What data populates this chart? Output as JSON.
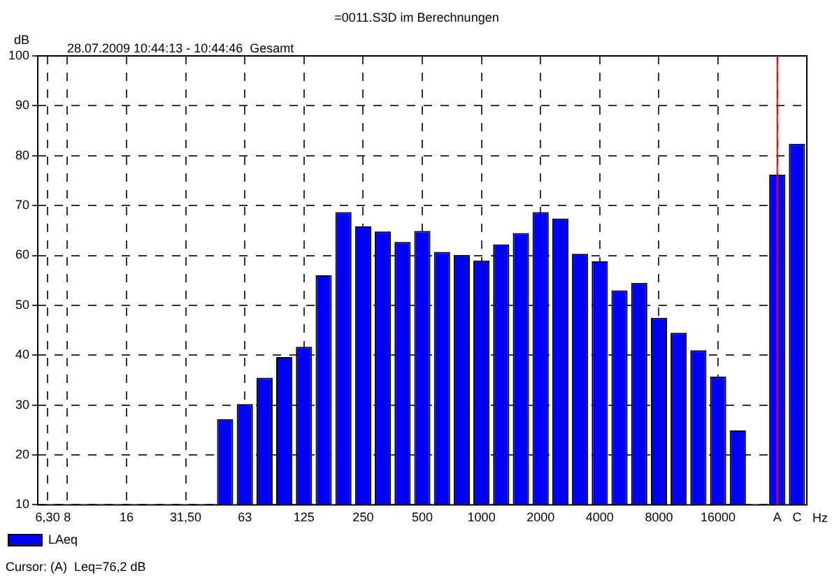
{
  "chart_data": {
    "type": "bar",
    "title": "=0011.S3D im Berechnungen",
    "subtitle": "28.07.2009 10:44:13 - 10:44:46  Gesamt",
    "ylabel": "dB",
    "xlabel": "Hz",
    "categories": [
      "6,30",
      "8",
      null,
      null,
      "16",
      null,
      null,
      "31,50",
      null,
      null,
      "63",
      null,
      null,
      "125",
      null,
      null,
      "250",
      null,
      null,
      "500",
      null,
      null,
      "1000",
      null,
      null,
      "2000",
      null,
      null,
      "4000",
      null,
      null,
      "8000",
      null,
      null,
      "16000",
      null,
      null,
      "A",
      "C"
    ],
    "series": [
      {
        "name": "LAeq",
        "color": "#0000ff",
        "values": [
          null,
          null,
          null,
          null,
          null,
          null,
          null,
          null,
          null,
          27.2,
          30.2,
          35.5,
          39.6,
          41.7,
          56.0,
          68.7,
          65.8,
          64.8,
          62.7,
          64.9,
          60.7,
          60.1,
          59.0,
          62.2,
          64.5,
          68.7,
          67.4,
          60.3,
          58.8,
          53.0,
          54.5,
          47.5,
          44.5,
          41.0,
          35.7,
          24.9,
          null,
          76.2,
          82.4
        ]
      }
    ],
    "ylim": [
      10,
      100
    ],
    "yticks": [
      10,
      20,
      30,
      40,
      50,
      60,
      70,
      80,
      90,
      100
    ],
    "grid": true,
    "legend": "bottom left",
    "ref_lines": [
      {
        "axis": "x",
        "value": "A",
        "color": "#ff0000"
      }
    ],
    "annotations": [
      "Cursor: (A)  Leq=76,2 dB"
    ]
  }
}
